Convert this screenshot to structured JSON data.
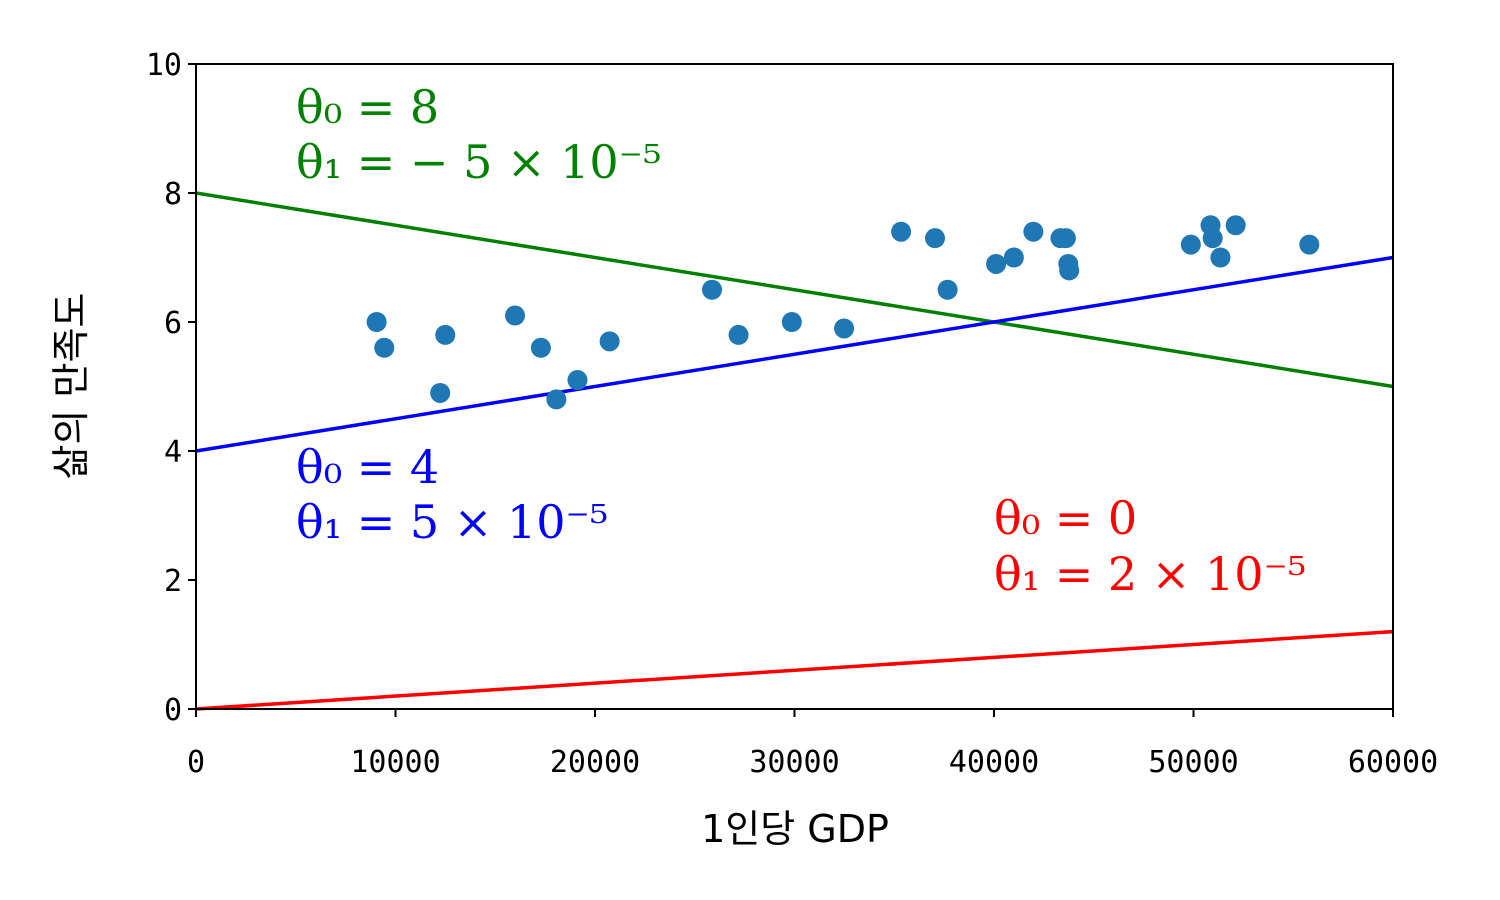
{
  "chart_data": {
    "type": "scatter",
    "xlabel": "1인당 GDP",
    "ylabel": "삶의 만족도",
    "xlim": [
      0,
      60000
    ],
    "ylim": [
      0,
      10
    ],
    "x_ticks": [
      "0",
      "10000",
      "20000",
      "30000",
      "40000",
      "50000",
      "60000"
    ],
    "y_ticks": [
      "0",
      "2",
      "4",
      "6",
      "8",
      "10"
    ],
    "grid": false,
    "points": {
      "color": "#1f77b4",
      "x": [
        9054,
        9437,
        12240,
        12495,
        15991,
        17288,
        18064,
        19121,
        20732,
        25865,
        27195,
        29866,
        32485,
        35343,
        37044,
        37675,
        40106,
        40996,
        41973,
        43331,
        43603,
        43724,
        43770,
        49866,
        50855,
        50962,
        51350,
        52114,
        55805
      ],
      "y": [
        6.0,
        5.6,
        4.9,
        5.8,
        6.1,
        5.6,
        4.8,
        5.1,
        5.7,
        6.5,
        5.8,
        6.0,
        5.9,
        7.4,
        7.3,
        6.5,
        6.9,
        7.0,
        7.4,
        7.3,
        7.3,
        6.9,
        6.8,
        7.2,
        7.5,
        7.3,
        7.0,
        7.5,
        7.2
      ]
    },
    "series": [
      {
        "color": "#ff0000",
        "intercept": 0,
        "slope": 2e-05,
        "label_line1": "θ₀ = 0",
        "label_line2": "θ₁ = 2 × 10⁻⁵"
      },
      {
        "color": "#008000",
        "intercept": 8,
        "slope": -5e-05,
        "label_line1": "θ₀ = 8",
        "label_line2": "θ₁ = − 5 × 10⁻⁵"
      },
      {
        "color": "#0000ff",
        "intercept": 4,
        "slope": 5e-05,
        "label_line1": "θ₀ = 4",
        "label_line2": "θ₁ = 5 × 10⁻⁵"
      }
    ]
  }
}
